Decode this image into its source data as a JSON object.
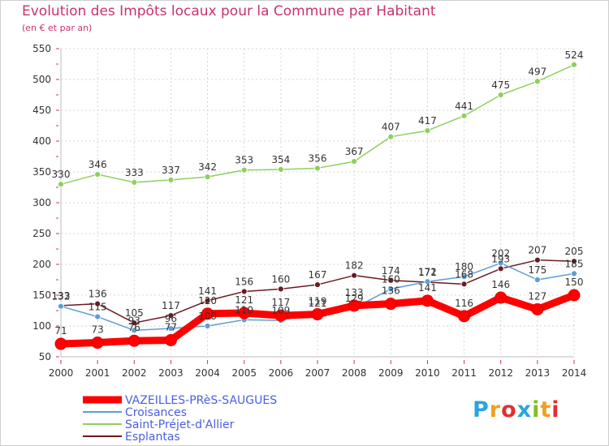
{
  "title": "Evolution des Impôts locaux pour la Commune par Habitant",
  "subtitle": "(en € et par an)",
  "logo": {
    "letters": [
      "P",
      "r",
      "o",
      "x",
      "i",
      "t",
      "i"
    ],
    "colors": [
      "#2aa6dc",
      "#f0a020",
      "#e23030",
      "#2aa6dc",
      "#80c020",
      "#f0a020",
      "#e23030"
    ]
  },
  "chart_data": {
    "type": "line",
    "x": [
      2000,
      2001,
      2002,
      2003,
      2004,
      2005,
      2006,
      2007,
      2008,
      2009,
      2010,
      2011,
      2012,
      2013,
      2014
    ],
    "ylim": [
      50,
      550
    ],
    "yticks": [
      50,
      100,
      150,
      200,
      250,
      300,
      350,
      400,
      450,
      500,
      550
    ],
    "grid": true,
    "legend": "bottom-left",
    "series": [
      {
        "name": "VAZEILLES-PRèS-SAUGUES",
        "color": "#ff0000",
        "width": 9,
        "values": [
          71,
          73,
          76,
          77,
          120,
          121,
          117,
          119,
          133,
          136,
          141,
          116,
          146,
          127,
          150
        ]
      },
      {
        "name": "Croisances",
        "color": "#5f9ed6",
        "width": 1.5,
        "values": [
          132,
          115,
          93,
          96,
          100,
          110,
          109,
          121,
          129,
          160,
          172,
          180,
          202,
          175,
          185
        ]
      },
      {
        "name": "Saint-Préjet-d'Allier",
        "color": "#8ed05c",
        "width": 1.5,
        "values": [
          330,
          346,
          333,
          337,
          342,
          353,
          354,
          356,
          367,
          407,
          417,
          441,
          475,
          497,
          524
        ]
      },
      {
        "name": "Esplantas",
        "color": "#6b1a20",
        "width": 1.5,
        "values": [
          133,
          136,
          105,
          117,
          141,
          156,
          160,
          167,
          182,
          174,
          171,
          168,
          193,
          207,
          205
        ]
      }
    ]
  }
}
